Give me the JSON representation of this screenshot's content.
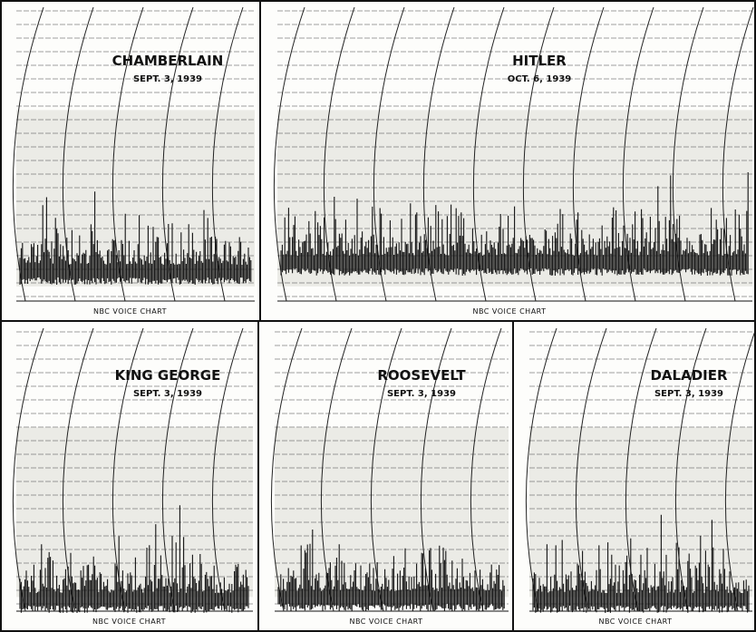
{
  "panels": [
    {
      "name": "CHAMBERLAIN",
      "date": "SEPT. 3, 1939",
      "footer": "NBC VOICE CHART"
    },
    {
      "name": "HITLER",
      "date": "OCT. 6, 1939",
      "footer": "NBC VOICE CHART"
    },
    {
      "name": "KING GEORGE",
      "date": "SEPT. 3, 1939",
      "footer": "NBC VOICE CHART"
    },
    {
      "name": "ROOSEVELT",
      "date": "SEPT. 3, 1939",
      "footer": "NBC VOICE CHART"
    },
    {
      "name": "DALADIER",
      "date": "SEPT. 3, 1939",
      "footer": "NBC VOICE CHART"
    }
  ]
}
